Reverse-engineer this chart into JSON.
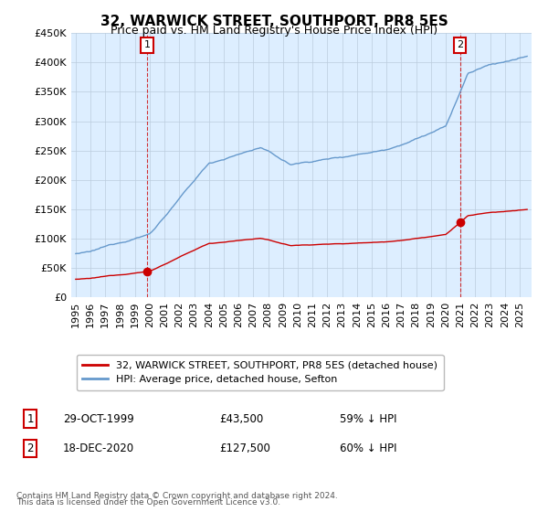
{
  "title": "32, WARWICK STREET, SOUTHPORT, PR8 5ES",
  "subtitle": "Price paid vs. HM Land Registry's House Price Index (HPI)",
  "legend_line1": "32, WARWICK STREET, SOUTHPORT, PR8 5ES (detached house)",
  "legend_line2": "HPI: Average price, detached house, Sefton",
  "footer1": "Contains HM Land Registry data © Crown copyright and database right 2024.",
  "footer2": "This data is licensed under the Open Government Licence v3.0.",
  "point1_date": "29-OCT-1999",
  "point1_price": "£43,500",
  "point1_hpi": "59% ↓ HPI",
  "point2_date": "18-DEC-2020",
  "point2_price": "£127,500",
  "point2_hpi": "60% ↓ HPI",
  "point1_year": 1999.83,
  "point1_value": 43500,
  "point2_year": 2020.96,
  "point2_value": 127500,
  "red_color": "#cc0000",
  "blue_color": "#6699cc",
  "plot_bg_color": "#ddeeff",
  "background_color": "#ffffff",
  "grid_color": "#bbccdd",
  "ylim_min": 0,
  "ylim_max": 450000,
  "xlim_min": 1994.7,
  "xlim_max": 2025.8
}
